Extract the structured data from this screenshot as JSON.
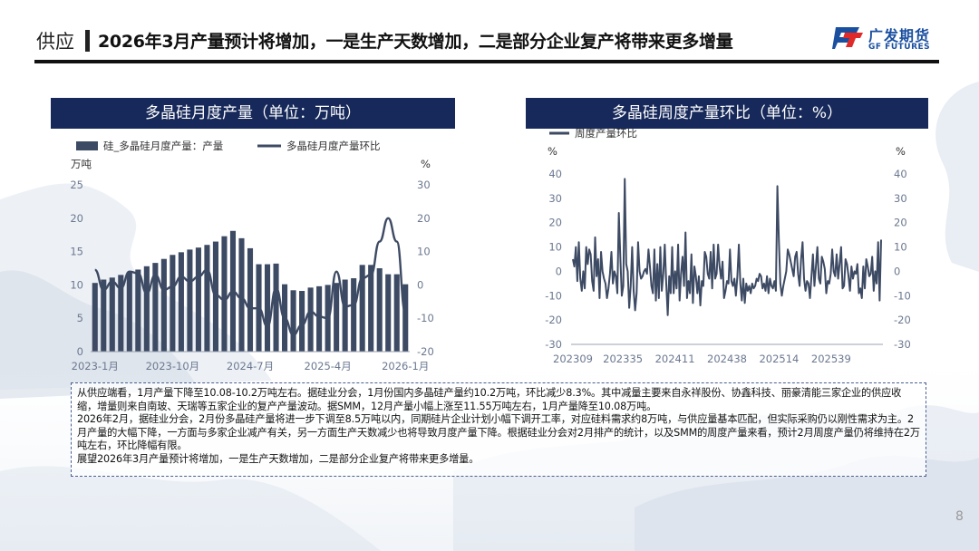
{
  "header": {
    "section": "供应",
    "title": "2026年3月产量预计将增加，一是生产天数增加，二是部分企业复产将带来更多增量"
  },
  "logo": {
    "cn": "广发期货",
    "en": "GF FUTURES",
    "colors": {
      "blue": "#1a4fa0",
      "red": "#e02a2a"
    }
  },
  "colors": {
    "panel_title_bg": "#17295a",
    "bar": "#3d4a63",
    "line": "#3d4a63",
    "axis_text": "#6b7890"
  },
  "chart_data": [
    {
      "type": "bar",
      "title": "多晶硅月度产量（单位：万吨）",
      "legend_position": "top",
      "grid": false,
      "series": [
        {
          "name": "硅_多晶硅月度产量：产量",
          "kind": "bar",
          "axis": "left",
          "values": [
            10.3,
            10.8,
            11.1,
            11.5,
            11.9,
            12.3,
            12.8,
            13.3,
            13.9,
            14.5,
            14.9,
            15.3,
            15.6,
            16.0,
            16.5,
            17.3,
            18.1,
            17.0,
            15.5,
            13.1,
            13.1,
            13.2,
            10.1,
            9.2,
            9.1,
            9.6,
            9.8,
            10.0,
            10.3,
            10.8,
            11.0,
            13.0,
            13.0,
            12.5,
            11.6,
            11.6,
            10.1
          ]
        },
        {
          "name": "多晶硅月度产量环比",
          "kind": "line",
          "axis": "right",
          "values": [
            4.5,
            -1.5,
            1.0,
            -1.0,
            4.0,
            3.5,
            -2.5,
            3.0,
            -1.5,
            -0.5,
            2.5,
            1.0,
            2.5,
            4.5,
            -3.0,
            -4.5,
            -2.0,
            -4.0,
            -7.0,
            -7.0,
            -12.5,
            -1.0,
            -10.0,
            -15.0,
            -12.0,
            -8.0,
            -9.5,
            -10.0,
            4.0,
            -6.5,
            -6.0,
            2.0,
            3.0,
            13.0,
            20.0,
            13.0,
            -8.3
          ]
        }
      ],
      "y_left": {
        "unit": "万吨",
        "ylim": [
          0,
          25
        ],
        "ticks": [
          "0",
          "5",
          "10",
          "15",
          "20",
          "25"
        ]
      },
      "y_right": {
        "unit": "%",
        "ylim": [
          -20,
          30
        ],
        "ticks": [
          "-20",
          "-10",
          "0",
          "10",
          "20",
          "30"
        ]
      },
      "x_tick_labels": [
        "2023-1月",
        "2023-10月",
        "2024-7月",
        "2025-4月",
        "2026-1月"
      ]
    },
    {
      "type": "line",
      "title": "多晶硅周度产量环比（单位：%）",
      "legend_position": "top-left",
      "grid": false,
      "series": [
        {
          "name": "周度产量环比",
          "values": [
            5,
            2,
            10,
            -4,
            12,
            -3,
            -8,
            0,
            -7,
            10,
            3,
            9,
            7,
            -4,
            -8,
            14,
            -2,
            5,
            -11,
            8,
            0,
            -3,
            -5,
            -11,
            -7,
            -1,
            8,
            -5,
            0,
            -2,
            -9,
            24,
            6,
            -10,
            -6,
            38,
            3,
            0,
            -15,
            -6,
            10,
            -8,
            -16,
            -9,
            12,
            0,
            -3,
            -2,
            0,
            1,
            -1,
            9,
            2,
            -6,
            -9,
            9,
            -12,
            3,
            -11,
            10,
            -8,
            -1,
            11,
            -5,
            -18,
            -2,
            -9,
            10,
            -9,
            0,
            -7,
            11,
            -12,
            -1,
            6,
            -6,
            16,
            -11,
            -4,
            -9,
            7,
            -13,
            2,
            -2,
            -9,
            -2,
            -14,
            -4,
            -6,
            8,
            6,
            -1,
            -3,
            8,
            -7,
            11,
            -3,
            -1,
            11,
            2,
            -3,
            4,
            -11,
            -8,
            -4,
            -5,
            9,
            -4,
            -6,
            -3,
            -10,
            -2,
            11,
            -5,
            -12,
            -3,
            -13,
            -5,
            -8,
            -6,
            -9,
            -5,
            -7,
            -6,
            -3,
            -4,
            -1,
            -2,
            -7,
            -5,
            -8,
            -2,
            -9,
            -3,
            -6,
            -7,
            -4,
            -8,
            35,
            13,
            -5,
            -10,
            -6,
            -3,
            0,
            9,
            7,
            4,
            1,
            -2,
            6,
            8,
            -1,
            -6,
            5,
            12,
            -3,
            -8,
            -4,
            -5,
            -11,
            -2,
            7,
            -6,
            2,
            10,
            -3,
            -5,
            6,
            4,
            1,
            -9,
            -4,
            -5,
            -1,
            9,
            0,
            -2,
            7,
            -3,
            3,
            10,
            -7,
            -6,
            5,
            3,
            -2,
            -8,
            2,
            -3,
            0,
            -1,
            3,
            -9,
            -7,
            -11,
            2,
            -7,
            5,
            2,
            -2,
            -1,
            6,
            -8,
            0,
            -5,
            12,
            -12,
            13
          ]
        }
      ],
      "y_left": {
        "unit": "%",
        "ylim": [
          -30,
          40
        ],
        "ticks": [
          "-30",
          "-20",
          "-10",
          "0",
          "10",
          "20",
          "30",
          "40"
        ]
      },
      "y_right": {
        "unit": "%",
        "ylim": [
          -30,
          40
        ],
        "ticks": [
          "-30",
          "-20",
          "-10",
          "0",
          "10",
          "20",
          "30",
          "40"
        ]
      },
      "x_tick_labels": [
        "202309",
        "202335",
        "202411",
        "202438",
        "202514",
        "202539"
      ]
    }
  ],
  "commentary": [
    "从供应端看，1月产量下降至10.08-10.2万吨左右。据硅业分会，1月份国内多晶硅产量约10.2万吨，环比减少8.3%。其中减量主要来自永祥股份、协鑫科技、丽豪清能三家企业的供应收缩，增量则来自南玻、天瑞等五家企业的复产产量波动。据SMM，12月产量小幅上涨至11.55万吨左右，1月产量降至10.08万吨。",
    "2026年2月，据硅业分会，2月份多晶硅产量将进一步下调至8.5万吨以内，同期硅片企业计划小幅下调开工率，对应硅料需求约8万吨，与供应量基本匹配，但实际采购仍以刚性需求为主。2月产量的大幅下降，一方面与多家企业减产有关，另一方面生产天数减少也将导致月度产量下降。根据硅业分会对2月排产的统计，以及SMM的周度产量来看，预计2月周度产量仍将维持在2万吨左右，环比降幅有限。",
    "展望2026年3月产量预计将增加，一是生产天数增加，二是部分企业复产将带来更多增量。"
  ],
  "page_number": "8"
}
